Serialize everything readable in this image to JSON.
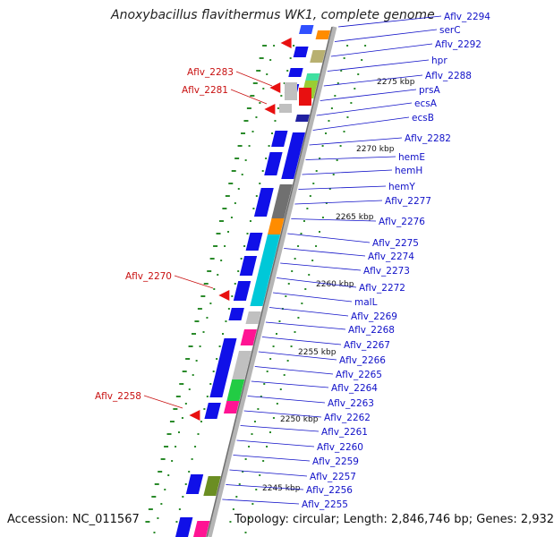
{
  "header": {
    "title": "Anoxybacillus flavithermus WK1, complete genome"
  },
  "footer": {
    "accession": "Accession: NC_011567",
    "topology": "Topology: circular; Length: 2,846,746 bp; Genes: 2,932"
  },
  "colors": {
    "forward_gene": "#1010e8",
    "reverse_gene": "#e81010",
    "blue_label": "#1010c8",
    "red_label": "#c81010",
    "tick": "#2a8a2a"
  },
  "kbp_marks": [
    "2275 kbp",
    "2270 kbp",
    "2265 kbp",
    "2260 kbp",
    "2255 kbp",
    "2250 kbp",
    "2245 kbp"
  ],
  "right_labels": [
    "Aflv_2294",
    "serC",
    "Aflv_2292",
    "hpr",
    "Aflv_2288",
    "prsA",
    "ecsA",
    "ecsB",
    "Aflv_2282",
    "hemE",
    "hemH",
    "hemY",
    "Aflv_2277",
    "Aflv_2276",
    "Aflv_2275",
    "Aflv_2274",
    "Aflv_2273",
    "Aflv_2272",
    "malL",
    "Aflv_2269",
    "Aflv_2268",
    "Aflv_2267",
    "Aflv_2266",
    "Aflv_2265",
    "Aflv_2264",
    "Aflv_2263",
    "Aflv_2262",
    "Aflv_2261",
    "Aflv_2260",
    "Aflv_2259",
    "Aflv_2257",
    "Aflv_2256",
    "Aflv_2255"
  ],
  "left_labels": [
    "Aflv_2283",
    "Aflv_2281",
    "Aflv_2270",
    "Aflv_2258"
  ]
}
